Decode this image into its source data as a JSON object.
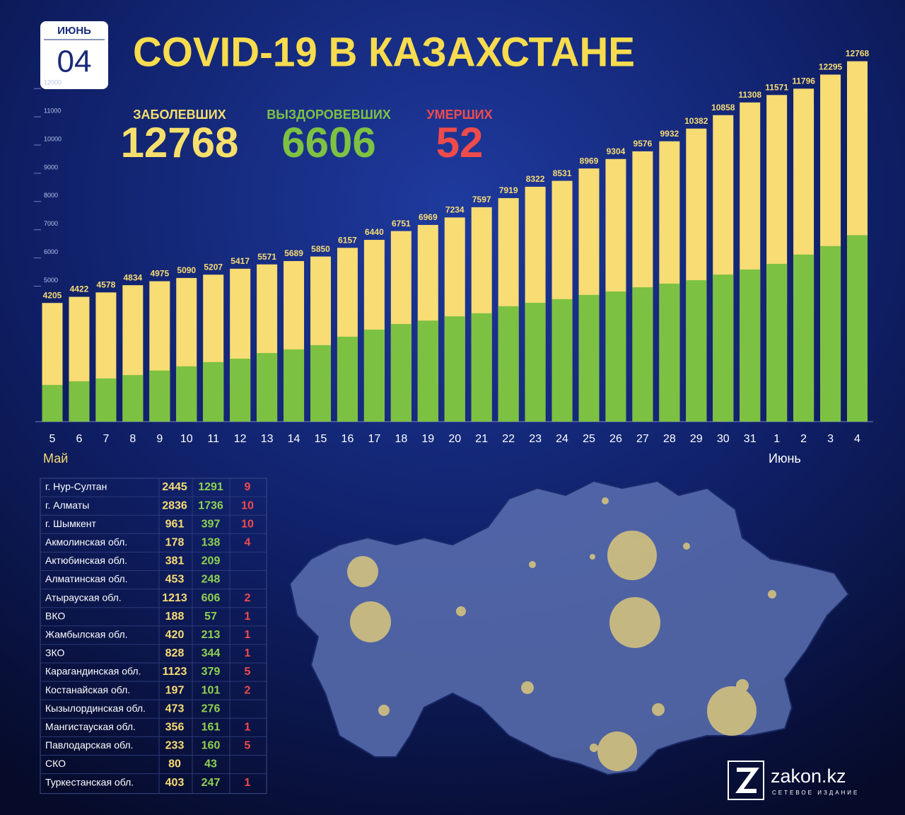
{
  "header": {
    "month": "ИЮНЬ",
    "day": "04",
    "title": "COVID-19 В КАЗАХСТАНЕ"
  },
  "stats": [
    {
      "label": "ЗАБОЛЕВШИХ",
      "value": 12768,
      "color": "#f7df6b"
    },
    {
      "label": "ВЫЗДОРОВЕВШИХ",
      "value": 6606,
      "color": "#7dc242"
    },
    {
      "label": "УМЕРШИХ",
      "value": 52,
      "color": "#ef4b4b"
    }
  ],
  "chart_data": {
    "type": "bar",
    "barmode": "overlay",
    "categories": [
      "5",
      "6",
      "7",
      "8",
      "9",
      "10",
      "11",
      "12",
      "13",
      "14",
      "15",
      "16",
      "17",
      "18",
      "19",
      "20",
      "21",
      "22",
      "23",
      "24",
      "25",
      "26",
      "27",
      "28",
      "29",
      "30",
      "31",
      "1",
      "2",
      "3",
      "4"
    ],
    "annotations": [
      "Май",
      "Июнь"
    ],
    "series": [
      {
        "color": "#f8dc74",
        "values": [
          4205,
          4422,
          4578,
          4834,
          4975,
          5090,
          5207,
          5417,
          5571,
          5689,
          5850,
          6157,
          6440,
          6751,
          6969,
          7234,
          7597,
          7919,
          8322,
          8531,
          8969,
          9304,
          9576,
          9932,
          10382,
          10858,
          11308,
          11571,
          11796,
          12295,
          12768
        ]
      },
      {
        "color": "#7cc142",
        "values": [
          1300,
          1430,
          1530,
          1650,
          1810,
          1960,
          2110,
          2230,
          2430,
          2560,
          2710,
          3010,
          3260,
          3460,
          3580,
          3730,
          3840,
          4090,
          4210,
          4340,
          4490,
          4610,
          4760,
          4890,
          5010,
          5210,
          5390,
          5590,
          5920,
          6220,
          6606
        ]
      }
    ],
    "ylim": [
      0,
      13000
    ],
    "yticks": [
      5000,
      6000,
      7000,
      8000,
      9000,
      10000,
      11000,
      12000
    ],
    "grid": false
  },
  "table": {
    "colors": [
      "#ffffff",
      "#f8dc74",
      "#8fd14f",
      "#ef4b4b"
    ],
    "rows": [
      [
        "г. Нур-Султан",
        2445,
        1291,
        9
      ],
      [
        "г. Алматы",
        2836,
        1736,
        10
      ],
      [
        "г. Шымкент",
        961,
        397,
        10
      ],
      [
        "Акмолинская обл.",
        178,
        138,
        4
      ],
      [
        "Актюбинская обл.",
        381,
        209,
        null
      ],
      [
        "Алматинская обл.",
        453,
        248,
        null
      ],
      [
        "Атырауская обл.",
        1213,
        606,
        2
      ],
      [
        "ВКО",
        188,
        57,
        1
      ],
      [
        "Жамбылская обл.",
        420,
        213,
        1
      ],
      [
        "ЗКО",
        828,
        344,
        1
      ],
      [
        "Карагандинская обл.",
        1123,
        379,
        5
      ],
      [
        "Костанайская обл.",
        197,
        101,
        2
      ],
      [
        "Кызылординская обл.",
        473,
        276,
        null
      ],
      [
        "Мангистауская обл.",
        356,
        161,
        1
      ],
      [
        "Павлодарская обл.",
        233,
        160,
        5
      ],
      [
        "СКО",
        80,
        43,
        null
      ],
      [
        "Туркестанская обл.",
        403,
        247,
        1
      ]
    ]
  },
  "logo": {
    "name": "zakon.kz",
    "tagline": "СЕТЕВОЕ ИЗДАНИЕ"
  }
}
